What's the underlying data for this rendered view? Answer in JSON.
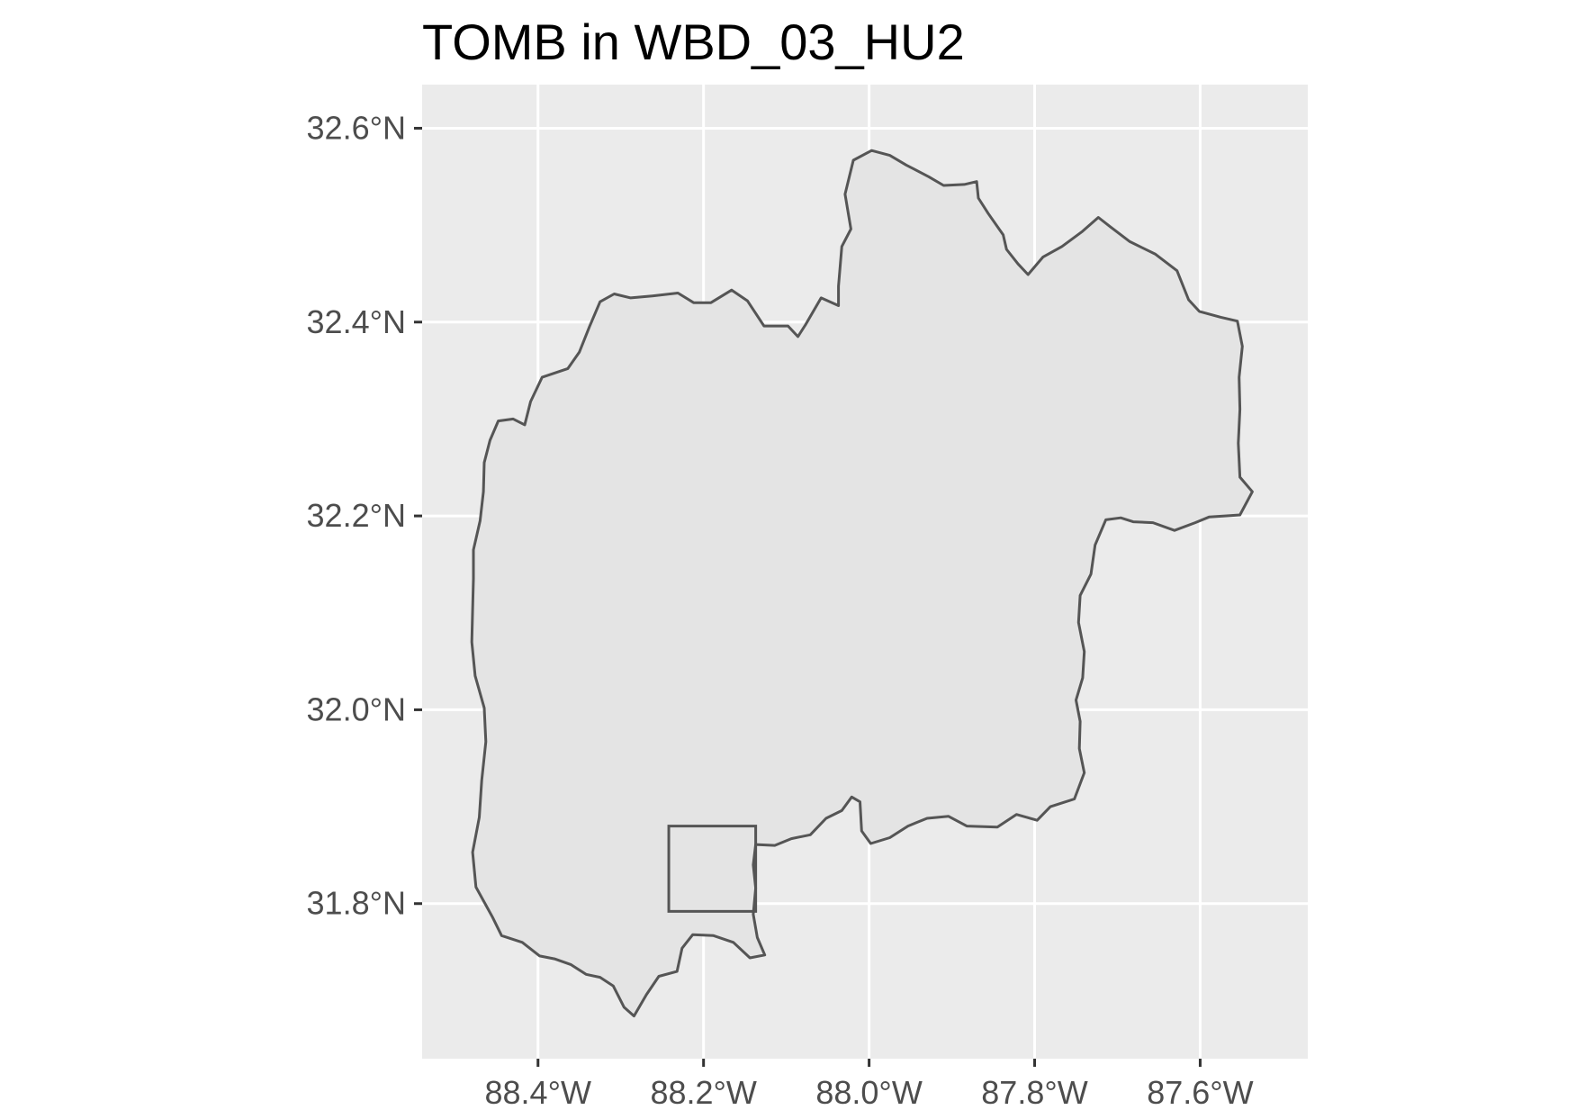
{
  "title": "TOMB in WBD_03_HU2",
  "map": {
    "lon_range": [
      -88.54,
      -87.47
    ],
    "lat_range": [
      31.64,
      32.645
    ],
    "x_breaks": [
      -88.4,
      -88.2,
      -88.0,
      -87.8,
      -87.6
    ],
    "y_breaks": [
      31.8,
      32.0,
      32.2,
      32.4,
      32.6
    ],
    "x_tick_labels": [
      "88.4°W",
      "88.2°W",
      "88.0°W",
      "87.8°W",
      "87.6°W"
    ],
    "y_tick_labels": [
      "31.8°N",
      "32.0°N",
      "32.2°N",
      "32.4°N",
      "32.6°N"
    ],
    "panel_background": "#ebebeb",
    "grid_color": "#ffffff",
    "grid": true,
    "watershed": {
      "fill": "#e4e4e4",
      "stroke": "#555555",
      "outline": [
        [
          -88.416,
          32.294
        ],
        [
          -88.409,
          32.318
        ],
        [
          -88.395,
          32.343
        ],
        [
          -88.364,
          32.352
        ],
        [
          -88.35,
          32.369
        ],
        [
          -88.338,
          32.395
        ],
        [
          -88.325,
          32.421
        ],
        [
          -88.308,
          32.429
        ],
        [
          -88.288,
          32.425
        ],
        [
          -88.262,
          32.427
        ],
        [
          -88.231,
          32.43
        ],
        [
          -88.212,
          32.42
        ],
        [
          -88.191,
          32.42
        ],
        [
          -88.166,
          32.433
        ],
        [
          -88.147,
          32.422
        ],
        [
          -88.127,
          32.396
        ],
        [
          -88.098,
          32.396
        ],
        [
          -88.086,
          32.385
        ],
        [
          -88.077,
          32.397
        ],
        [
          -88.058,
          32.425
        ],
        [
          -88.037,
          32.417
        ],
        [
          -88.037,
          32.437
        ],
        [
          -88.033,
          32.478
        ],
        [
          -88.022,
          32.496
        ],
        [
          -88.029,
          32.532
        ],
        [
          -88.019,
          32.567
        ],
        [
          -87.997,
          32.577
        ],
        [
          -87.975,
          32.572
        ],
        [
          -87.955,
          32.562
        ],
        [
          -87.928,
          32.55
        ],
        [
          -87.91,
          32.541
        ],
        [
          -87.885,
          32.542
        ],
        [
          -87.87,
          32.545
        ],
        [
          -87.868,
          32.528
        ],
        [
          -87.856,
          32.512
        ],
        [
          -87.838,
          32.49
        ],
        [
          -87.834,
          32.475
        ],
        [
          -87.82,
          32.46
        ],
        [
          -87.808,
          32.449
        ],
        [
          -87.79,
          32.467
        ],
        [
          -87.767,
          32.478
        ],
        [
          -87.743,
          32.493
        ],
        [
          -87.723,
          32.508
        ],
        [
          -87.708,
          32.498
        ],
        [
          -87.685,
          32.483
        ],
        [
          -87.654,
          32.47
        ],
        [
          -87.628,
          32.453
        ],
        [
          -87.614,
          32.423
        ],
        [
          -87.601,
          32.411
        ],
        [
          -87.575,
          32.405
        ],
        [
          -87.555,
          32.401
        ],
        [
          -87.549,
          32.375
        ],
        [
          -87.553,
          32.343
        ],
        [
          -87.552,
          32.31
        ],
        [
          -87.554,
          32.275
        ],
        [
          -87.552,
          32.24
        ],
        [
          -87.537,
          32.225
        ],
        [
          -87.552,
          32.201
        ],
        [
          -87.57,
          32.2
        ],
        [
          -87.589,
          32.199
        ],
        [
          -87.606,
          32.193
        ],
        [
          -87.631,
          32.185
        ],
        [
          -87.657,
          32.193
        ],
        [
          -87.681,
          32.194
        ],
        [
          -87.696,
          32.198
        ],
        [
          -87.714,
          32.196
        ],
        [
          -87.727,
          32.17
        ],
        [
          -87.732,
          32.14
        ],
        [
          -87.745,
          32.118
        ],
        [
          -87.747,
          32.09
        ],
        [
          -87.74,
          32.06
        ],
        [
          -87.742,
          32.033
        ],
        [
          -87.75,
          32.01
        ],
        [
          -87.745,
          31.988
        ],
        [
          -87.746,
          31.96
        ],
        [
          -87.74,
          31.935
        ],
        [
          -87.752,
          31.908
        ],
        [
          -87.781,
          31.9
        ],
        [
          -87.797,
          31.886
        ],
        [
          -87.822,
          31.892
        ],
        [
          -87.845,
          31.879
        ],
        [
          -87.882,
          31.88
        ],
        [
          -87.904,
          31.89
        ],
        [
          -87.93,
          31.888
        ],
        [
          -87.953,
          31.88
        ],
        [
          -87.975,
          31.868
        ],
        [
          -87.998,
          31.862
        ],
        [
          -88.009,
          31.875
        ],
        [
          -88.011,
          31.905
        ],
        [
          -88.021,
          31.91
        ],
        [
          -88.033,
          31.896
        ],
        [
          -88.052,
          31.888
        ],
        [
          -88.071,
          31.871
        ],
        [
          -88.094,
          31.867
        ],
        [
          -88.114,
          31.86
        ],
        [
          -88.137,
          31.861
        ],
        [
          -88.14,
          31.84
        ],
        [
          -88.137,
          31.816
        ],
        [
          -88.14,
          31.789
        ],
        [
          -88.135,
          31.765
        ],
        [
          -88.126,
          31.747
        ],
        [
          -88.144,
          31.744
        ],
        [
          -88.164,
          31.76
        ],
        [
          -88.188,
          31.767
        ],
        [
          -88.213,
          31.768
        ],
        [
          -88.226,
          31.754
        ],
        [
          -88.232,
          31.73
        ],
        [
          -88.254,
          31.725
        ],
        [
          -88.269,
          31.706
        ],
        [
          -88.284,
          31.684
        ],
        [
          -88.296,
          31.693
        ],
        [
          -88.309,
          31.715
        ],
        [
          -88.325,
          31.724
        ],
        [
          -88.342,
          31.727
        ],
        [
          -88.36,
          31.737
        ],
        [
          -88.38,
          31.743
        ],
        [
          -88.398,
          31.746
        ],
        [
          -88.419,
          31.76
        ],
        [
          -88.444,
          31.767
        ],
        [
          -88.455,
          31.786
        ],
        [
          -88.475,
          31.817
        ],
        [
          -88.479,
          31.853
        ],
        [
          -88.471,
          31.889
        ],
        [
          -88.468,
          31.927
        ],
        [
          -88.463,
          31.967
        ],
        [
          -88.465,
          32.002
        ],
        [
          -88.476,
          32.035
        ],
        [
          -88.48,
          32.07
        ],
        [
          -88.479,
          32.103
        ],
        [
          -88.478,
          32.135
        ],
        [
          -88.478,
          32.165
        ],
        [
          -88.47,
          32.195
        ],
        [
          -88.466,
          32.225
        ],
        [
          -88.465,
          32.255
        ],
        [
          -88.458,
          32.278
        ],
        [
          -88.448,
          32.298
        ],
        [
          -88.43,
          32.3
        ],
        [
          -88.416,
          32.294
        ]
      ]
    },
    "tomb_box": {
      "stroke": "#555555",
      "lon_min": -88.242,
      "lon_max": -88.137,
      "lat_min": 31.792,
      "lat_max": 31.88
    }
  }
}
